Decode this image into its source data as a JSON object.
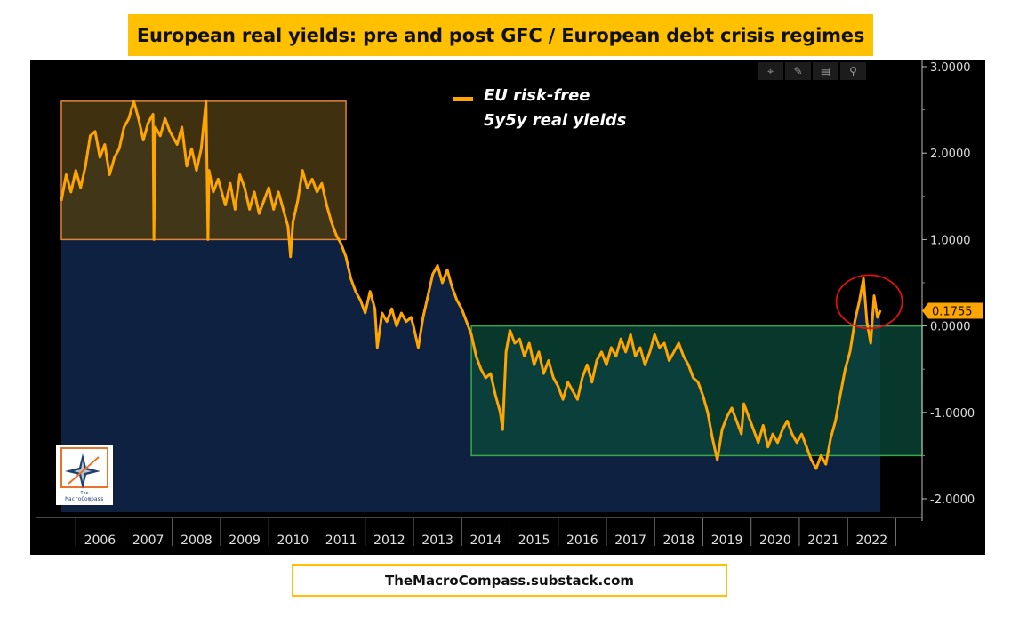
{
  "title": "European real yields: pre and post GFC / European debt crisis regimes",
  "footer": "TheMacroCompass.substack.com",
  "legend": {
    "line1": "EU risk-free",
    "line2": "5y5y real yields",
    "color": "#ffa500"
  },
  "logo": {
    "the": "The",
    "name": "MacroCompass"
  },
  "toolbar": [
    "crosshair-icon",
    "pencil-icon",
    "table-icon",
    "magnifier-icon"
  ],
  "colors": {
    "line": "#ffa500",
    "area": "#0e2141",
    "pre_box_border": "#e0843a",
    "pre_box_fill": "#4a3a12",
    "post_box_border": "#3aa84a",
    "post_box_fill": "#0b4a3a",
    "highlight_circle": "#e01010",
    "last_value_badge": "#ffa500"
  },
  "chart_data": {
    "type": "area",
    "series": [
      {
        "name": "EU risk-free 5y5y real yields"
      }
    ],
    "ylim": [
      -2.2,
      3.0
    ],
    "y_ticks": [
      "3.0000",
      "2.0000",
      "1.0000",
      "0.0000",
      "-1.0000",
      "-2.0000"
    ],
    "x_ticks": [
      "2006",
      "2007",
      "2008",
      "2009",
      "2010",
      "2011",
      "2012",
      "2013",
      "2014",
      "2015",
      "2016",
      "2017",
      "2018",
      "2019",
      "2020",
      "2021",
      "2022"
    ],
    "xlim": [
      2005.7,
      2022.9
    ],
    "last_value": 0.1755,
    "last_value_label": "0.1755",
    "points": [
      [
        2005.7,
        1.45
      ],
      [
        2005.8,
        1.75
      ],
      [
        2005.9,
        1.55
      ],
      [
        2006.0,
        1.8
      ],
      [
        2006.1,
        1.6
      ],
      [
        2006.2,
        1.85
      ],
      [
        2006.3,
        2.2
      ],
      [
        2006.4,
        2.25
      ],
      [
        2006.5,
        1.95
      ],
      [
        2006.6,
        2.1
      ],
      [
        2006.7,
        1.75
      ],
      [
        2006.8,
        1.95
      ],
      [
        2006.9,
        2.05
      ],
      [
        2007.0,
        2.3
      ],
      [
        2007.1,
        2.4
      ],
      [
        2007.2,
        2.6
      ],
      [
        2007.3,
        2.4
      ],
      [
        2007.4,
        2.15
      ],
      [
        2007.5,
        2.35
      ],
      [
        2007.6,
        2.45
      ],
      [
        2007.62,
        1.0
      ],
      [
        2007.65,
        2.3
      ],
      [
        2007.75,
        2.2
      ],
      [
        2007.85,
        2.4
      ],
      [
        2007.95,
        2.25
      ],
      [
        2008.1,
        2.1
      ],
      [
        2008.2,
        2.3
      ],
      [
        2008.3,
        1.85
      ],
      [
        2008.4,
        2.05
      ],
      [
        2008.5,
        1.8
      ],
      [
        2008.6,
        2.05
      ],
      [
        2008.7,
        2.6
      ],
      [
        2008.74,
        1.0
      ],
      [
        2008.76,
        1.8
      ],
      [
        2008.85,
        1.55
      ],
      [
        2008.95,
        1.7
      ],
      [
        2009.1,
        1.4
      ],
      [
        2009.2,
        1.65
      ],
      [
        2009.3,
        1.35
      ],
      [
        2009.4,
        1.75
      ],
      [
        2009.5,
        1.6
      ],
      [
        2009.6,
        1.35
      ],
      [
        2009.7,
        1.55
      ],
      [
        2009.8,
        1.3
      ],
      [
        2009.9,
        1.45
      ],
      [
        2010.0,
        1.6
      ],
      [
        2010.1,
        1.35
      ],
      [
        2010.2,
        1.55
      ],
      [
        2010.3,
        1.35
      ],
      [
        2010.4,
        1.15
      ],
      [
        2010.45,
        0.8
      ],
      [
        2010.5,
        1.2
      ],
      [
        2010.6,
        1.45
      ],
      [
        2010.7,
        1.8
      ],
      [
        2010.8,
        1.6
      ],
      [
        2010.9,
        1.7
      ],
      [
        2011.0,
        1.55
      ],
      [
        2011.1,
        1.65
      ],
      [
        2011.2,
        1.4
      ],
      [
        2011.3,
        1.2
      ],
      [
        2011.4,
        1.05
      ],
      [
        2011.5,
        0.95
      ],
      [
        2011.6,
        0.8
      ],
      [
        2011.7,
        0.55
      ],
      [
        2011.8,
        0.4
      ],
      [
        2011.9,
        0.3
      ],
      [
        2012.0,
        0.15
      ],
      [
        2012.1,
        0.4
      ],
      [
        2012.2,
        0.2
      ],
      [
        2012.25,
        -0.25
      ],
      [
        2012.35,
        0.15
      ],
      [
        2012.45,
        0.05
      ],
      [
        2012.55,
        0.2
      ],
      [
        2012.65,
        0.0
      ],
      [
        2012.75,
        0.15
      ],
      [
        2012.85,
        0.05
      ],
      [
        2012.95,
        0.1
      ],
      [
        2013.0,
        0.0
      ],
      [
        2013.1,
        -0.25
      ],
      [
        2013.2,
        0.1
      ],
      [
        2013.3,
        0.35
      ],
      [
        2013.4,
        0.6
      ],
      [
        2013.5,
        0.7
      ],
      [
        2013.6,
        0.5
      ],
      [
        2013.7,
        0.65
      ],
      [
        2013.8,
        0.45
      ],
      [
        2013.9,
        0.3
      ],
      [
        2014.0,
        0.2
      ],
      [
        2014.1,
        0.05
      ],
      [
        2014.2,
        -0.1
      ],
      [
        2014.3,
        -0.35
      ],
      [
        2014.4,
        -0.5
      ],
      [
        2014.5,
        -0.6
      ],
      [
        2014.6,
        -0.55
      ],
      [
        2014.7,
        -0.8
      ],
      [
        2014.8,
        -1.0
      ],
      [
        2014.85,
        -1.2
      ],
      [
        2014.92,
        -0.3
      ],
      [
        2015.0,
        -0.05
      ],
      [
        2015.1,
        -0.2
      ],
      [
        2015.2,
        -0.15
      ],
      [
        2015.3,
        -0.35
      ],
      [
        2015.4,
        -0.2
      ],
      [
        2015.5,
        -0.45
      ],
      [
        2015.6,
        -0.3
      ],
      [
        2015.7,
        -0.55
      ],
      [
        2015.8,
        -0.4
      ],
      [
        2015.9,
        -0.6
      ],
      [
        2016.0,
        -0.7
      ],
      [
        2016.1,
        -0.85
      ],
      [
        2016.2,
        -0.65
      ],
      [
        2016.3,
        -0.75
      ],
      [
        2016.4,
        -0.85
      ],
      [
        2016.5,
        -0.6
      ],
      [
        2016.6,
        -0.45
      ],
      [
        2016.7,
        -0.65
      ],
      [
        2016.8,
        -0.4
      ],
      [
        2016.9,
        -0.3
      ],
      [
        2017.0,
        -0.45
      ],
      [
        2017.1,
        -0.25
      ],
      [
        2017.2,
        -0.35
      ],
      [
        2017.3,
        -0.15
      ],
      [
        2017.4,
        -0.3
      ],
      [
        2017.5,
        -0.1
      ],
      [
        2017.6,
        -0.35
      ],
      [
        2017.7,
        -0.25
      ],
      [
        2017.8,
        -0.45
      ],
      [
        2017.9,
        -0.3
      ],
      [
        2018.0,
        -0.1
      ],
      [
        2018.1,
        -0.25
      ],
      [
        2018.2,
        -0.2
      ],
      [
        2018.3,
        -0.4
      ],
      [
        2018.4,
        -0.3
      ],
      [
        2018.5,
        -0.2
      ],
      [
        2018.6,
        -0.35
      ],
      [
        2018.7,
        -0.45
      ],
      [
        2018.8,
        -0.6
      ],
      [
        2018.9,
        -0.65
      ],
      [
        2019.0,
        -0.8
      ],
      [
        2019.1,
        -1.0
      ],
      [
        2019.2,
        -1.3
      ],
      [
        2019.3,
        -1.55
      ],
      [
        2019.4,
        -1.2
      ],
      [
        2019.5,
        -1.05
      ],
      [
        2019.6,
        -0.95
      ],
      [
        2019.7,
        -1.1
      ],
      [
        2019.8,
        -1.25
      ],
      [
        2019.85,
        -0.9
      ],
      [
        2019.95,
        -1.05
      ],
      [
        2020.05,
        -1.2
      ],
      [
        2020.15,
        -1.35
      ],
      [
        2020.25,
        -1.15
      ],
      [
        2020.35,
        -1.4
      ],
      [
        2020.45,
        -1.25
      ],
      [
        2020.55,
        -1.35
      ],
      [
        2020.65,
        -1.2
      ],
      [
        2020.75,
        -1.1
      ],
      [
        2020.85,
        -1.25
      ],
      [
        2020.95,
        -1.35
      ],
      [
        2021.05,
        -1.25
      ],
      [
        2021.15,
        -1.4
      ],
      [
        2021.25,
        -1.55
      ],
      [
        2021.35,
        -1.65
      ],
      [
        2021.45,
        -1.5
      ],
      [
        2021.55,
        -1.6
      ],
      [
        2021.65,
        -1.3
      ],
      [
        2021.75,
        -1.1
      ],
      [
        2021.85,
        -0.8
      ],
      [
        2021.95,
        -0.5
      ],
      [
        2022.05,
        -0.3
      ],
      [
        2022.15,
        0.05
      ],
      [
        2022.25,
        0.3
      ],
      [
        2022.33,
        0.55
      ],
      [
        2022.4,
        0.05
      ],
      [
        2022.48,
        -0.2
      ],
      [
        2022.55,
        0.35
      ],
      [
        2022.62,
        0.1
      ],
      [
        2022.68,
        0.18
      ]
    ]
  }
}
